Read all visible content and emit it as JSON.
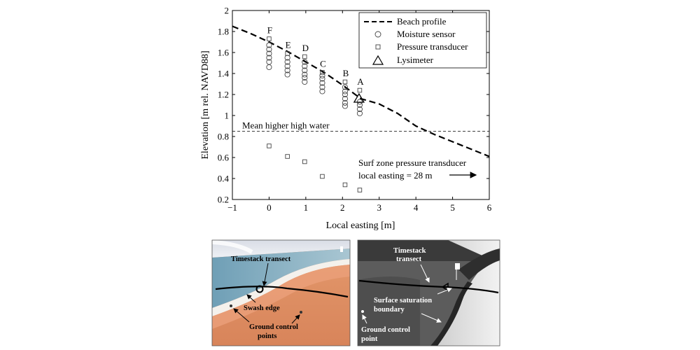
{
  "chart_data": {
    "type": "scatter",
    "title": "",
    "xlabel": "Local easting [m]",
    "ylabel": "Elevation [m rel. NAVD88]",
    "xlim": [
      -1,
      6
    ],
    "ylim": [
      0.2,
      2
    ],
    "xticks": [
      "−1",
      "0",
      "1",
      "2",
      "3",
      "4",
      "5",
      "6"
    ],
    "yticks": [
      "0.2",
      "0.4",
      "0.6",
      "0.8",
      "1",
      "1.2",
      "1.4",
      "1.6",
      "1.8",
      "2"
    ],
    "grid": false,
    "legend_position": "top-right",
    "legend": [
      {
        "label": "Beach profile",
        "marker": "dashed-line"
      },
      {
        "label": "Moisture sensor",
        "marker": "circle"
      },
      {
        "label": "Pressure transducer",
        "marker": "square"
      },
      {
        "label": "Lysimeter",
        "marker": "triangle"
      }
    ],
    "beach_profile": {
      "x": [
        -1,
        -0.5,
        0,
        0.5,
        1,
        1.5,
        2,
        2.5,
        3,
        3.5,
        4,
        4.5,
        5,
        5.5,
        6
      ],
      "y": [
        1.85,
        1.78,
        1.7,
        1.61,
        1.51,
        1.41,
        1.29,
        1.16,
        1.11,
        1.02,
        0.9,
        0.82,
        0.75,
        0.68,
        0.61
      ]
    },
    "stations": [
      {
        "label": "F",
        "x": 0.0,
        "pt_top": 1.73,
        "moisture": [
          1.67,
          1.63,
          1.59,
          1.55,
          1.51,
          1.46
        ],
        "pt_bottom": 0.71
      },
      {
        "label": "E",
        "x": 0.5,
        "pt_top": 1.59,
        "moisture": [
          1.55,
          1.51,
          1.47,
          1.43,
          1.39
        ],
        "pt_bottom": 0.61
      },
      {
        "label": "D",
        "x": 0.97,
        "pt_top": 1.56,
        "moisture": [
          1.51,
          1.47,
          1.43,
          1.39,
          1.36,
          1.32
        ],
        "pt_bottom": 0.56
      },
      {
        "label": "C",
        "x": 1.45,
        "pt_top": 1.41,
        "moisture": [
          1.38,
          1.35,
          1.31,
          1.27,
          1.23
        ],
        "pt_bottom": 0.42
      },
      {
        "label": "B",
        "x": 2.07,
        "pt_top": 1.32,
        "moisture": [
          1.27,
          1.23,
          1.2,
          1.16,
          1.12,
          1.09
        ],
        "pt_bottom": 0.34
      },
      {
        "label": "A",
        "x": 2.47,
        "pt_top": 1.24,
        "moisture": [
          1.13,
          1.1,
          1.06,
          1.02
        ],
        "pt_bottom": 0.29
      }
    ],
    "lysimeter": {
      "x": 2.45,
      "y": 1.16
    },
    "mhhw": {
      "y": 0.85,
      "label": "Mean higher high water"
    },
    "annotations": {
      "surf_line1": "Surf zone pressure transducer",
      "surf_line2": "local easting = 28 m"
    }
  },
  "photos": {
    "left": {
      "label_transect": "Timestack transect",
      "label_swash": "Swash edge",
      "label_gcp1": "Ground control",
      "label_gcp2": "points"
    },
    "right": {
      "label_transect1": "Timestack",
      "label_transect2": "transect",
      "label_sat1": "Surface saturation",
      "label_sat2": "boundary",
      "label_gcp1": "Ground control",
      "label_gcp2": "point"
    }
  }
}
